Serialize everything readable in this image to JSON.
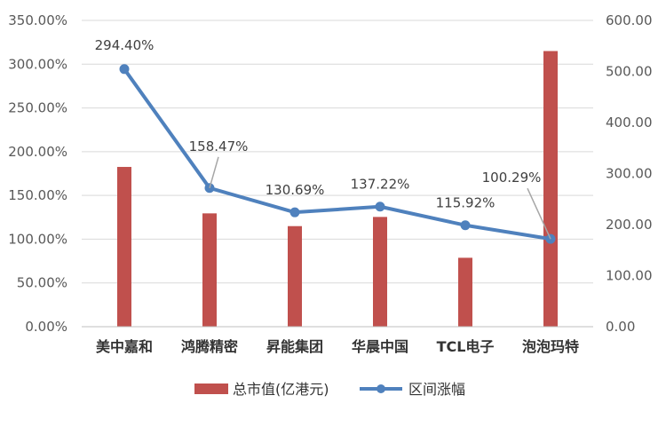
{
  "chart_data": {
    "type": "bar",
    "combo": "bar-line dual-axis",
    "categories": [
      "美中嘉和",
      "鸿腾精密",
      "昇能集团",
      "华晨中国",
      "TCL电子",
      "泡泡玛特"
    ],
    "series": [
      {
        "name": "总市值(亿港元)",
        "type": "bar",
        "axis": "right",
        "values": [
          313,
          222,
          197,
          215,
          135,
          540
        ],
        "color": "#C0504D"
      },
      {
        "name": "区间涨幅",
        "type": "line",
        "axis": "left",
        "values": [
          294.4,
          158.47,
          130.69,
          137.22,
          115.92,
          100.29
        ],
        "data_labels": [
          "294.40%",
          "158.47%",
          "130.69%",
          "137.22%",
          "115.92%",
          "100.29%"
        ],
        "color": "#4F81BD"
      }
    ],
    "y_left": {
      "ylim": [
        0,
        350
      ],
      "ticks": [
        "0.00%",
        "50.00%",
        "100.00%",
        "150.00%",
        "200.00%",
        "250.00%",
        "300.00%",
        "350.00%"
      ]
    },
    "y_right": {
      "ylim": [
        0,
        600
      ],
      "ticks": [
        "0.00",
        "100.00",
        "200.00",
        "300.00",
        "400.00",
        "500.00",
        "600.00"
      ]
    },
    "grid": true,
    "legend_position": "bottom"
  }
}
